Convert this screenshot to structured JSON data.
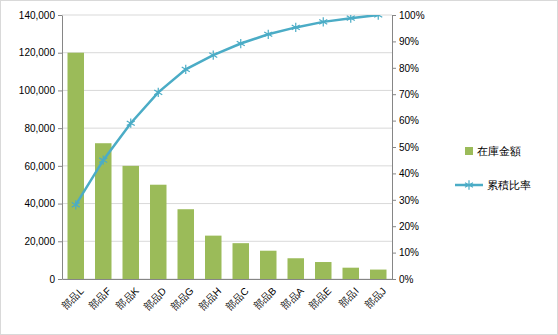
{
  "chart_data": {
    "type": "bar",
    "categories": [
      "部品L",
      "部品F",
      "部品K",
      "部品D",
      "部品G",
      "部品H",
      "部品C",
      "部品B",
      "部品A",
      "部品E",
      "部品I",
      "部品J"
    ],
    "series": [
      {
        "name": "在庫金額",
        "type": "bar",
        "color": "#9bbb59",
        "values": [
          120000,
          72000,
          60000,
          50000,
          37000,
          23000,
          19000,
          15000,
          11000,
          9000,
          6000,
          5000
        ]
      },
      {
        "name": "累積比率",
        "type": "line",
        "axis": "y2",
        "color": "#4bacc6",
        "marker": "asterisk",
        "values": [
          28.1,
          45.0,
          59.0,
          70.7,
          79.4,
          84.8,
          89.2,
          92.7,
          95.3,
          97.4,
          98.8,
          100
        ]
      }
    ],
    "ylim": [
      0,
      140000
    ],
    "yticks": [
      0,
      {
        "value": 20000,
        "label": "20,000"
      },
      {
        "value": 40000,
        "label": "40,000"
      },
      {
        "value": 60000,
        "label": "60,000"
      },
      {
        "value": 80000,
        "label": "80,000"
      },
      {
        "value": 100000,
        "label": "100,000"
      },
      {
        "value": 120000,
        "label": "120,000"
      },
      {
        "value": 140000,
        "label": "140,000"
      }
    ],
    "y2lim": [
      0,
      100
    ],
    "y2ticks": [
      {
        "value": 0,
        "label": "0%"
      },
      {
        "value": 10,
        "label": "10%"
      },
      {
        "value": 20,
        "label": "20%"
      },
      {
        "value": 30,
        "label": "30%"
      },
      {
        "value": 40,
        "label": "40%"
      },
      {
        "value": 50,
        "label": "50%"
      },
      {
        "value": 60,
        "label": "60%"
      },
      {
        "value": 70,
        "label": "70%"
      },
      {
        "value": 80,
        "label": "80%"
      },
      {
        "value": 90,
        "label": "90%"
      },
      {
        "value": 100,
        "label": "100%"
      }
    ],
    "grid": true,
    "legend": "right"
  }
}
